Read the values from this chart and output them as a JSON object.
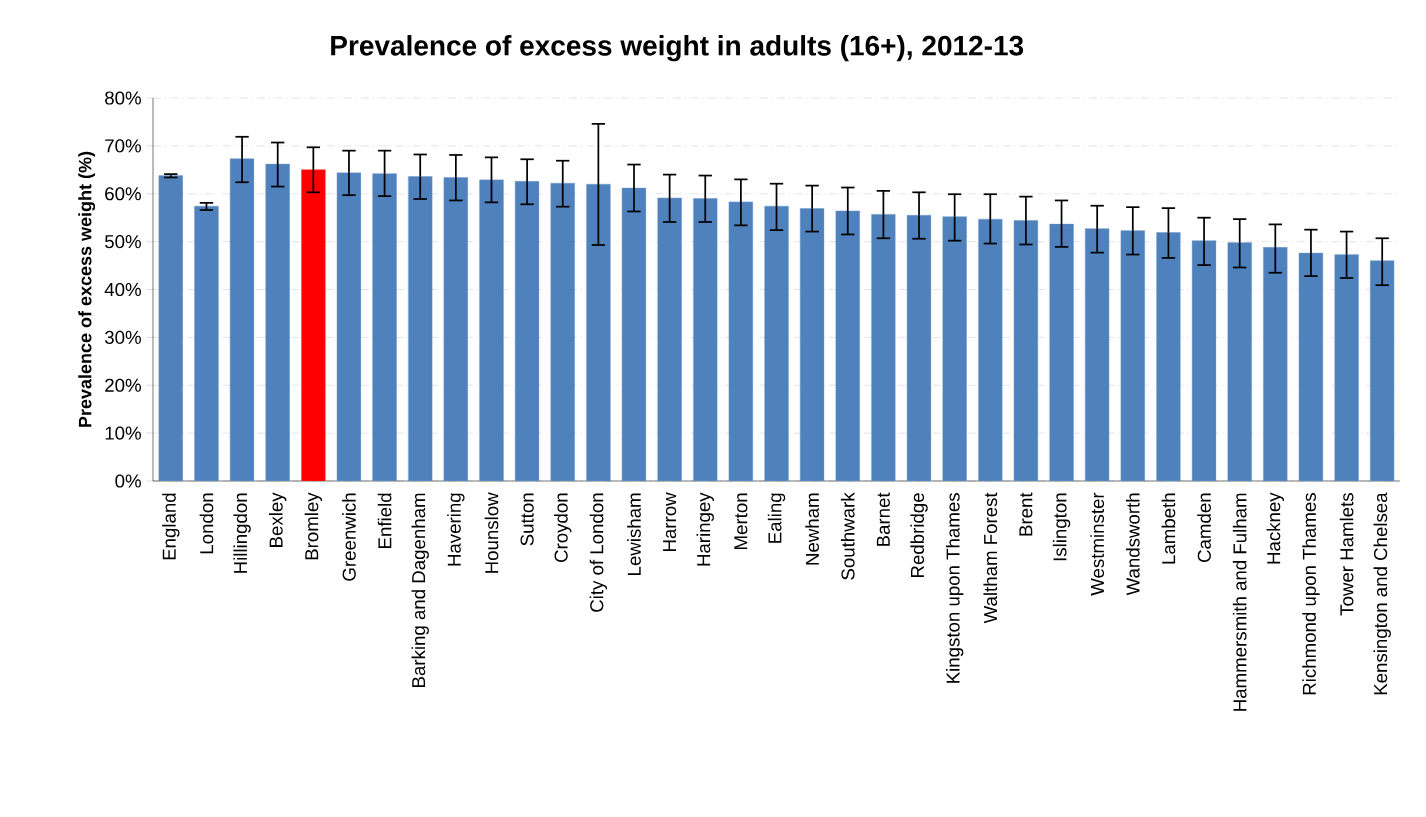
{
  "chart_data": {
    "type": "bar",
    "title": "Prevalence of excess weight in adults (16+), 2012-13",
    "ylabel": "Prevalence of excess weight (%)",
    "categories": [
      "England",
      "London",
      "Hillingdon",
      "Bexley",
      "Bromley",
      "Greenwich",
      "Enfield",
      "Barking and Dagenham",
      "Havering",
      "Hounslow",
      "Sutton",
      "Croydon",
      "City of London",
      "Lewisham",
      "Harrow",
      "Haringey",
      "Merton",
      "Ealing",
      "Newham",
      "Southwark",
      "Barnet",
      "Redbridge",
      "Kingston upon Thames",
      "Waltham Forest",
      "Brent",
      "Islington",
      "Westminster",
      "Wandsworth",
      "Lambeth",
      "Camden",
      "Hammersmith and Fulham",
      "Hackney",
      "Richmond upon Thames",
      "Tower Hamlets",
      "Kensington and Chelsea"
    ],
    "values": [
      63.8,
      57.4,
      67.3,
      66.2,
      65.0,
      64.4,
      64.2,
      63.6,
      63.4,
      62.9,
      62.6,
      62.2,
      62.0,
      61.2,
      59.1,
      59.0,
      58.3,
      57.4,
      56.9,
      56.4,
      55.7,
      55.5,
      55.2,
      54.7,
      54.4,
      53.7,
      52.7,
      52.3,
      51.9,
      50.2,
      49.8,
      48.8,
      47.6,
      47.3,
      46.0
    ],
    "errors": [
      [
        63.4,
        64.1
      ],
      [
        56.6,
        58.1
      ],
      [
        62.4,
        71.9
      ],
      [
        61.5,
        70.7
      ],
      [
        60.3,
        69.7
      ],
      [
        59.7,
        69.0
      ],
      [
        59.5,
        69.0
      ],
      [
        58.9,
        68.2
      ],
      [
        58.6,
        68.1
      ],
      [
        58.2,
        67.6
      ],
      [
        57.8,
        67.2
      ],
      [
        57.3,
        66.9
      ],
      [
        49.3,
        74.6
      ],
      [
        56.3,
        66.1
      ],
      [
        54.1,
        64.0
      ],
      [
        54.1,
        63.8
      ],
      [
        53.4,
        63.0
      ],
      [
        52.4,
        62.1
      ],
      [
        52.1,
        61.7
      ],
      [
        51.5,
        61.3
      ],
      [
        50.7,
        60.6
      ],
      [
        50.6,
        60.3
      ],
      [
        50.2,
        59.9
      ],
      [
        49.6,
        59.9
      ],
      [
        49.4,
        59.4
      ],
      [
        48.9,
        58.6
      ],
      [
        47.7,
        57.5
      ],
      [
        47.3,
        57.2
      ],
      [
        46.6,
        57.0
      ],
      [
        45.1,
        55.0
      ],
      [
        44.6,
        54.7
      ],
      [
        43.5,
        53.6
      ],
      [
        42.8,
        52.5
      ],
      [
        42.4,
        52.1
      ],
      [
        40.9,
        50.7
      ]
    ],
    "colors": [
      "#4f81bd",
      "#4f81bd",
      "#4f81bd",
      "#4f81bd",
      "#ff0000",
      "#4f81bd",
      "#4f81bd",
      "#4f81bd",
      "#4f81bd",
      "#4f81bd",
      "#4f81bd",
      "#4f81bd",
      "#4f81bd",
      "#4f81bd",
      "#4f81bd",
      "#4f81bd",
      "#4f81bd",
      "#4f81bd",
      "#4f81bd",
      "#4f81bd",
      "#4f81bd",
      "#4f81bd",
      "#4f81bd",
      "#4f81bd",
      "#4f81bd",
      "#4f81bd",
      "#4f81bd",
      "#4f81bd",
      "#4f81bd",
      "#4f81bd",
      "#4f81bd",
      "#4f81bd",
      "#4f81bd",
      "#4f81bd",
      "#4f81bd"
    ],
    "ylim": [
      0,
      80
    ],
    "yticks": [
      {
        "value": 0,
        "label": "0%"
      },
      {
        "value": 10,
        "label": "10%"
      },
      {
        "value": 20,
        "label": "20%"
      },
      {
        "value": 30,
        "label": "30%"
      },
      {
        "value": 40,
        "label": "40%"
      },
      {
        "value": 50,
        "label": "50%"
      },
      {
        "value": 60,
        "label": "60%"
      },
      {
        "value": 70,
        "label": "70%"
      },
      {
        "value": 80,
        "label": "80%"
      }
    ],
    "grid": "y"
  }
}
